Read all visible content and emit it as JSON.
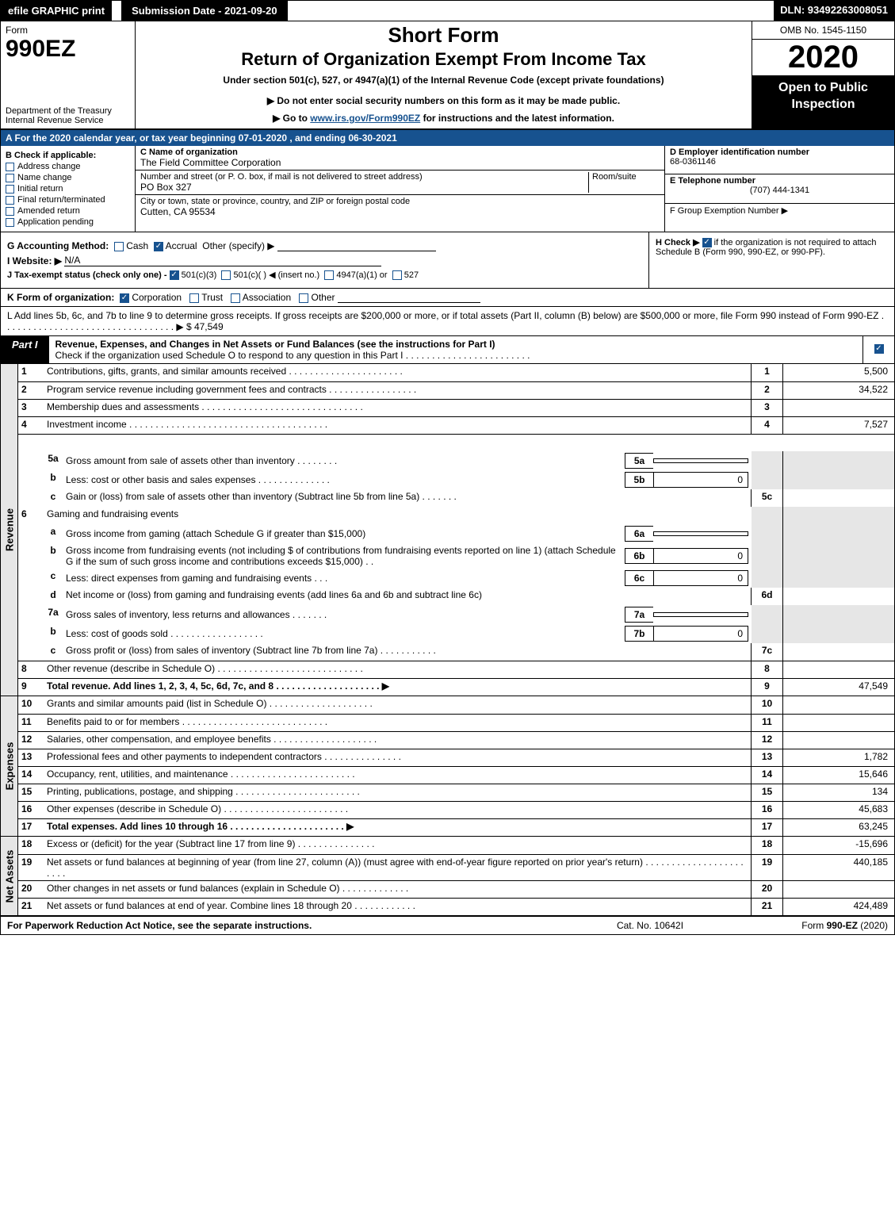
{
  "topbar": {
    "efile": "efile GRAPHIC print",
    "submission": "Submission Date - 2021-09-20",
    "dln": "DLN: 93492263008051"
  },
  "header": {
    "form_word": "Form",
    "form_num": "990EZ",
    "dept": "Department of the Treasury",
    "irs": "Internal Revenue Service",
    "short": "Short Form",
    "title": "Return of Organization Exempt From Income Tax",
    "under": "Under section 501(c), 527, or 4947(a)(1) of the Internal Revenue Code (except private foundations)",
    "warn": "▶ Do not enter social security numbers on this form as it may be made public.",
    "goto_pre": "▶ Go to ",
    "goto_link": "www.irs.gov/Form990EZ",
    "goto_post": " for instructions and the latest information.",
    "omb": "OMB No. 1545-1150",
    "year": "2020",
    "open": "Open to Public Inspection"
  },
  "rev": "A For the 2020 calendar year, or tax year beginning 07-01-2020 , and ending 06-30-2021",
  "entity": {
    "b_label": "B Check if applicable:",
    "checks": [
      "Address change",
      "Name change",
      "Initial return",
      "Final return/terminated",
      "Amended return",
      "Application pending"
    ],
    "c_label": "C Name of organization",
    "c_name": "The Field Committee Corporation",
    "addr_label": "Number and street (or P. O. box, if mail is not delivered to street address)",
    "room_label": "Room/suite",
    "addr": "PO Box 327",
    "city_label": "City or town, state or province, country, and ZIP or foreign postal code",
    "city": "Cutten, CA  95534",
    "d_label": "D Employer identification number",
    "d_val": "68-0361146",
    "e_label": "E Telephone number",
    "e_val": "(707) 444-1341",
    "f_label": "F Group Exemption Number   ▶"
  },
  "gh": {
    "g": "G Accounting Method:",
    "g_cash": "Cash",
    "g_accrual": "Accrual",
    "g_other": "Other (specify) ▶",
    "i": "I Website: ▶",
    "i_val": "N/A",
    "j": "J Tax-exempt status (check only one) -",
    "j1": "501(c)(3)",
    "j2": "501(c)(  ) ◀ (insert no.)",
    "j3": "4947(a)(1) or",
    "j4": "527",
    "h": "H  Check ▶",
    "h_txt": "if the organization is not required to attach Schedule B (Form 990, 990-EZ, or 990-PF)."
  },
  "k": "K Form of organization:",
  "k_opts": [
    "Corporation",
    "Trust",
    "Association",
    "Other"
  ],
  "l": "L Add lines 5b, 6c, and 7b to line 9 to determine gross receipts. If gross receipts are $200,000 or more, or if total assets (Part II, column (B) below) are $500,000 or more, file Form 990 instead of Form 990-EZ . . . . . . . . . . . . . . . . . . . . . . . . . . . . . . . . . ▶ $ 47,549",
  "part1": {
    "label": "Part I",
    "title": "Revenue, Expenses, and Changes in Net Assets or Fund Balances (see the instructions for Part I)",
    "sub": "Check if the organization used Schedule O to respond to any question in this Part I . . . . . . . . . . . . . . . . . . . . . . . ."
  },
  "revenue": [
    {
      "n": "1",
      "d": "Contributions, gifts, grants, and similar amounts received . . . . . . . . . . . . . . . . . . . . . .",
      "cn": "1",
      "v": "5,500"
    },
    {
      "n": "2",
      "d": "Program service revenue including government fees and contracts . . . . . . . . . . . . . . . . .",
      "cn": "2",
      "v": "34,522"
    },
    {
      "n": "3",
      "d": "Membership dues and assessments . . . . . . . . . . . . . . . . . . . . . . . . . . . . . . .",
      "cn": "3",
      "v": ""
    },
    {
      "n": "4",
      "d": "Investment income . . . . . . . . . . . . . . . . . . . . . . . . . . . . . . . . . . . . . .",
      "cn": "4",
      "v": "7,527"
    }
  ],
  "rev5a": {
    "n": "5a",
    "d": "Gross amount from sale of assets other than inventory . . . . . . . .",
    "sn": "5a",
    "sv": ""
  },
  "rev5b": {
    "n": "b",
    "d": "Less: cost or other basis and sales expenses . . . . . . . . . . . . . .",
    "sn": "5b",
    "sv": "0"
  },
  "rev5c": {
    "n": "c",
    "d": "Gain or (loss) from sale of assets other than inventory (Subtract line 5b from line 5a) . . . . . . .",
    "cn": "5c",
    "v": ""
  },
  "rev6": {
    "n": "6",
    "d": "Gaming and fundraising events"
  },
  "rev6a": {
    "n": "a",
    "d": "Gross income from gaming (attach Schedule G if greater than $15,000)",
    "sn": "6a",
    "sv": ""
  },
  "rev6b": {
    "n": "b",
    "d": "Gross income from fundraising events (not including $",
    "d2": " of contributions from fundraising events reported on line 1) (attach Schedule G if the sum of such gross income and contributions exceeds $15,000)   . .",
    "sn": "6b",
    "sv": "0"
  },
  "rev6c": {
    "n": "c",
    "d": "Less: direct expenses from gaming and fundraising events   . . .",
    "sn": "6c",
    "sv": "0"
  },
  "rev6d": {
    "n": "d",
    "d": "Net income or (loss) from gaming and fundraising events (add lines 6a and 6b and subtract line 6c)",
    "cn": "6d",
    "v": ""
  },
  "rev7a": {
    "n": "7a",
    "d": "Gross sales of inventory, less returns and allowances . . . . . . .",
    "sn": "7a",
    "sv": ""
  },
  "rev7b": {
    "n": "b",
    "d": "Less: cost of goods sold   . . . . . . . . . . . . . . . . . .",
    "sn": "7b",
    "sv": "0"
  },
  "rev7c": {
    "n": "c",
    "d": "Gross profit or (loss) from sales of inventory (Subtract line 7b from line 7a) . . . . . . . . . . .",
    "cn": "7c",
    "v": ""
  },
  "rev8": {
    "n": "8",
    "d": "Other revenue (describe in Schedule O) . . . . . . . . . . . . . . . . . . . . . . . . . . . .",
    "cn": "8",
    "v": ""
  },
  "rev9": {
    "n": "9",
    "d": "Total revenue. Add lines 1, 2, 3, 4, 5c, 6d, 7c, and 8 . . . . . . . . . . . . . . . . . . . . ▶",
    "cn": "9",
    "v": "47,549",
    "bold": true
  },
  "expenses": [
    {
      "n": "10",
      "d": "Grants and similar amounts paid (list in Schedule O) . . . . . . . . . . . . . . . . . . . .",
      "cn": "10",
      "v": ""
    },
    {
      "n": "11",
      "d": "Benefits paid to or for members   . . . . . . . . . . . . . . . . . . . . . . . . . . . .",
      "cn": "11",
      "v": ""
    },
    {
      "n": "12",
      "d": "Salaries, other compensation, and employee benefits . . . . . . . . . . . . . . . . . . . .",
      "cn": "12",
      "v": ""
    },
    {
      "n": "13",
      "d": "Professional fees and other payments to independent contractors . . . . . . . . . . . . . . .",
      "cn": "13",
      "v": "1,782"
    },
    {
      "n": "14",
      "d": "Occupancy, rent, utilities, and maintenance . . . . . . . . . . . . . . . . . . . . . . . .",
      "cn": "14",
      "v": "15,646"
    },
    {
      "n": "15",
      "d": "Printing, publications, postage, and shipping . . . . . . . . . . . . . . . . . . . . . . . .",
      "cn": "15",
      "v": "134"
    },
    {
      "n": "16",
      "d": "Other expenses (describe in Schedule O)   . . . . . . . . . . . . . . . . . . . . . . . .",
      "cn": "16",
      "v": "45,683"
    },
    {
      "n": "17",
      "d": "Total expenses. Add lines 10 through 16   . . . . . . . . . . . . . . . . . . . . . . ▶",
      "cn": "17",
      "v": "63,245",
      "bold": true
    }
  ],
  "netassets": [
    {
      "n": "18",
      "d": "Excess or (deficit) for the year (Subtract line 17 from line 9)   . . . . . . . . . . . . . . .",
      "cn": "18",
      "v": "-15,696"
    },
    {
      "n": "19",
      "d": "Net assets or fund balances at beginning of year (from line 27, column (A)) (must agree with end-of-year figure reported on prior year's return) . . . . . . . . . . . . . . . . . . . . . . .",
      "cn": "19",
      "v": "440,185"
    },
    {
      "n": "20",
      "d": "Other changes in net assets or fund balances (explain in Schedule O) . . . . . . . . . . . . .",
      "cn": "20",
      "v": ""
    },
    {
      "n": "21",
      "d": "Net assets or fund balances at end of year. Combine lines 18 through 20 . . . . . . . . . . . .",
      "cn": "21",
      "v": "424,489"
    }
  ],
  "sides": {
    "rev": "Revenue",
    "exp": "Expenses",
    "net": "Net Assets"
  },
  "footer": {
    "l": "For Paperwork Reduction Act Notice, see the separate instructions.",
    "c": "Cat. No. 10642I",
    "r": "Form 990-EZ (2020)"
  }
}
